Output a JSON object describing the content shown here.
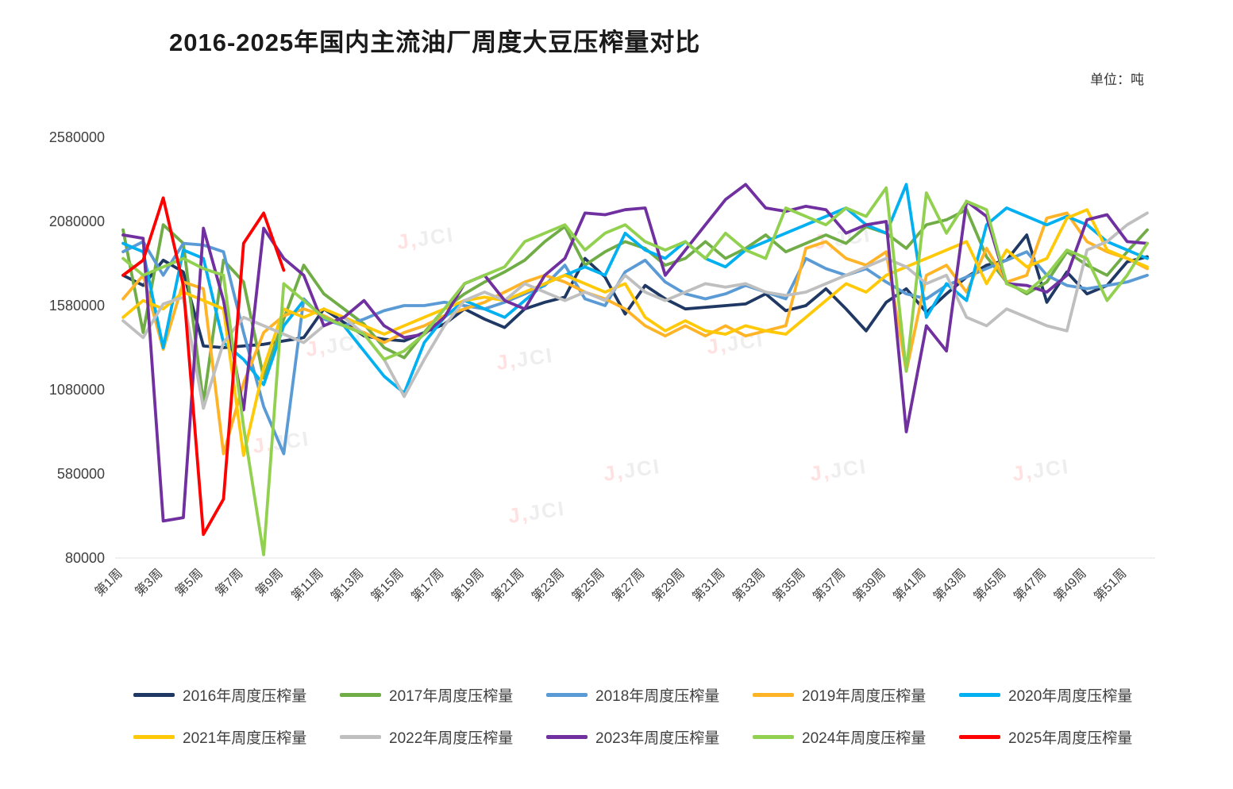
{
  "title": "2016-2025年国内主流油厂周度大豆压榨量对比",
  "unit_label": "单位：吨",
  "watermark": {
    "accent": "J,",
    "text": "JCI"
  },
  "chart_data": {
    "type": "line",
    "title": "2016-2025年国内主流油厂周度大豆压榨量对比",
    "ylabel": "吨",
    "xlabel": "周",
    "weeks": 52,
    "ylim": [
      80000,
      2580000
    ],
    "y_ticks": [
      2580000,
      2080000,
      1580000,
      1080000,
      580000,
      80000
    ],
    "x_tick_labels": [
      "第1周",
      "第3周",
      "第5周",
      "第7周",
      "第9周",
      "第11周",
      "第13周",
      "第15周",
      "第17周",
      "第19周",
      "第21周",
      "第23周",
      "第25周",
      "第27周",
      "第29周",
      "第31周",
      "第33周",
      "第35周",
      "第37周",
      "第39周",
      "第41周",
      "第43周",
      "第45周",
      "第47周",
      "第49周",
      "第51周"
    ],
    "grid": false,
    "legend_position": "bottom",
    "series": [
      {
        "name": "2016年周度压榨量",
        "color": "#1F3864",
        "values": [
          1760000,
          1700000,
          1850000,
          1780000,
          1340000,
          1330000,
          1340000,
          1350000,
          1370000,
          1390000,
          1560000,
          1480000,
          1400000,
          1380000,
          1370000,
          1420000,
          1470000,
          1560000,
          1500000,
          1450000,
          1560000,
          1600000,
          1630000,
          1860000,
          1750000,
          1530000,
          1700000,
          1620000,
          1560000,
          1570000,
          1580000,
          1590000,
          1650000,
          1550000,
          1580000,
          1680000,
          1560000,
          1430000,
          1600000,
          1680000,
          1540000,
          1650000,
          1750000,
          1820000,
          1850000,
          2000000,
          1600000,
          1780000,
          1650000,
          1700000,
          1840000,
          1870000
        ]
      },
      {
        "name": "2017年周度压榨量",
        "color": "#70AD47",
        "values": [
          2030000,
          1420000,
          2060000,
          1950000,
          1000000,
          1850000,
          1720000,
          1150000,
          1500000,
          1820000,
          1650000,
          1560000,
          1470000,
          1330000,
          1270000,
          1420000,
          1560000,
          1650000,
          1720000,
          1780000,
          1850000,
          1960000,
          2050000,
          1820000,
          1900000,
          1960000,
          1920000,
          1820000,
          1860000,
          1960000,
          1860000,
          1920000,
          2000000,
          1900000,
          1950000,
          2000000,
          1950000,
          2050000,
          2010000,
          1920000,
          2060000,
          2090000,
          2150000,
          1870000,
          1720000,
          1650000,
          1720000,
          1900000,
          1820000,
          1760000,
          1900000,
          2030000
        ]
      },
      {
        "name": "2018年周度压榨量",
        "color": "#5B9BD5",
        "values": [
          1900000,
          1960000,
          1760000,
          1950000,
          1940000,
          1900000,
          1420000,
          980000,
          700000,
          1620000,
          1500000,
          1460000,
          1500000,
          1550000,
          1580000,
          1580000,
          1600000,
          1580000,
          1560000,
          1600000,
          1650000,
          1700000,
          1820000,
          1620000,
          1580000,
          1780000,
          1850000,
          1720000,
          1650000,
          1620000,
          1650000,
          1700000,
          1660000,
          1620000,
          1860000,
          1800000,
          1760000,
          1800000,
          1720000,
          1650000,
          1620000,
          1700000,
          1750000,
          1800000,
          1850000,
          1900000,
          1760000,
          1700000,
          1680000,
          1700000,
          1720000,
          1760000
        ]
      },
      {
        "name": "2019年周度压榨量",
        "color": "#FFB428",
        "values": [
          1620000,
          1760000,
          1320000,
          1720000,
          1680000,
          700000,
          1120000,
          1420000,
          1520000,
          1560000,
          1520000,
          1460000,
          1420000,
          1360000,
          1420000,
          1460000,
          1520000,
          1560000,
          1600000,
          1660000,
          1720000,
          1760000,
          1720000,
          1660000,
          1620000,
          1560000,
          1460000,
          1400000,
          1460000,
          1400000,
          1460000,
          1400000,
          1430000,
          1460000,
          1920000,
          1960000,
          1860000,
          1820000,
          1900000,
          1190000,
          1760000,
          1820000,
          1660000,
          1920000,
          1720000,
          1760000,
          2100000,
          2130000,
          1960000,
          1900000,
          1860000,
          1800000
        ]
      },
      {
        "name": "2020年周度压榨量",
        "color": "#00B0F0",
        "values": [
          1950000,
          1900000,
          1330000,
          1910000,
          1860000,
          1360000,
          1260000,
          1110000,
          1460000,
          1610000,
          1510000,
          1460000,
          1310000,
          1160000,
          1060000,
          1360000,
          1510000,
          1610000,
          1560000,
          1510000,
          1610000,
          1710000,
          1760000,
          1810000,
          1760000,
          2010000,
          1910000,
          1860000,
          1960000,
          1860000,
          1810000,
          1910000,
          1960000,
          2010000,
          2060000,
          2110000,
          2160000,
          2060000,
          2010000,
          2300000,
          1510000,
          1710000,
          1610000,
          2060000,
          2160000,
          2110000,
          2060000,
          2110000,
          2060000,
          1960000,
          1910000,
          1860000
        ]
      },
      {
        "name": "2021年周度压榨量",
        "color": "#FFC907",
        "values": [
          1510000,
          1610000,
          1560000,
          1660000,
          1610000,
          1560000,
          690000,
          1210000,
          1560000,
          1510000,
          1560000,
          1510000,
          1460000,
          1410000,
          1460000,
          1510000,
          1560000,
          1610000,
          1630000,
          1610000,
          1660000,
          1710000,
          1760000,
          1710000,
          1660000,
          1710000,
          1510000,
          1430000,
          1490000,
          1430000,
          1410000,
          1460000,
          1430000,
          1410000,
          1510000,
          1610000,
          1710000,
          1660000,
          1760000,
          1810000,
          1860000,
          1910000,
          1960000,
          1710000,
          1910000,
          1810000,
          1860000,
          2100000,
          2150000,
          1910000,
          1860000,
          1810000
        ]
      },
      {
        "name": "2022年周度压榨量",
        "color": "#BFBFBF",
        "values": [
          1490000,
          1390000,
          1590000,
          1630000,
          970000,
          1360000,
          1510000,
          1460000,
          1410000,
          1360000,
          1460000,
          1510000,
          1410000,
          1260000,
          1040000,
          1260000,
          1460000,
          1610000,
          1660000,
          1610000,
          1710000,
          1660000,
          1610000,
          1660000,
          1610000,
          1760000,
          1660000,
          1610000,
          1660000,
          1710000,
          1690000,
          1710000,
          1660000,
          1640000,
          1660000,
          1710000,
          1760000,
          1810000,
          1860000,
          1810000,
          1710000,
          1760000,
          1510000,
          1460000,
          1560000,
          1510000,
          1460000,
          1430000,
          1910000,
          1960000,
          2060000,
          2130000
        ]
      },
      {
        "name": "2023年周度压榨量",
        "color": "#7030A0",
        "values": [
          2000000,
          1980000,
          300000,
          320000,
          2040000,
          1610000,
          960000,
          2040000,
          1860000,
          1760000,
          1460000,
          1510000,
          1610000,
          1460000,
          1390000,
          1410000,
          1510000,
          1710000,
          1760000,
          1610000,
          1560000,
          1760000,
          1860000,
          2130000,
          2120000,
          2150000,
          2160000,
          1760000,
          1910000,
          2060000,
          2210000,
          2300000,
          2160000,
          2140000,
          2170000,
          2150000,
          2010000,
          2060000,
          2080000,
          830000,
          1460000,
          1310000,
          2200000,
          2110000,
          1710000,
          1700000,
          1660000,
          1760000,
          2090000,
          2120000,
          1960000,
          1950000
        ]
      },
      {
        "name": "2024年周度压榨量",
        "color": "#92D050",
        "values": [
          1860000,
          1760000,
          1810000,
          1860000,
          1800000,
          1760000,
          860000,
          100000,
          1710000,
          1610000,
          1510000,
          1460000,
          1410000,
          1260000,
          1310000,
          1410000,
          1560000,
          1710000,
          1760000,
          1810000,
          1960000,
          2010000,
          2060000,
          1910000,
          2010000,
          2060000,
          1960000,
          1910000,
          1960000,
          1860000,
          2010000,
          1910000,
          1860000,
          2160000,
          2110000,
          2060000,
          2160000,
          2110000,
          2280000,
          1190000,
          2250000,
          2010000,
          2200000,
          2150000,
          1710000,
          1660000,
          1760000,
          1910000,
          1860000,
          1610000,
          1760000,
          1950000
        ]
      },
      {
        "name": "2025年周度压榨量",
        "color": "#FF0000",
        "values": [
          1760000,
          1850000,
          2220000,
          1700000,
          220000,
          430000,
          1950000,
          2130000,
          1790000
        ]
      }
    ]
  }
}
